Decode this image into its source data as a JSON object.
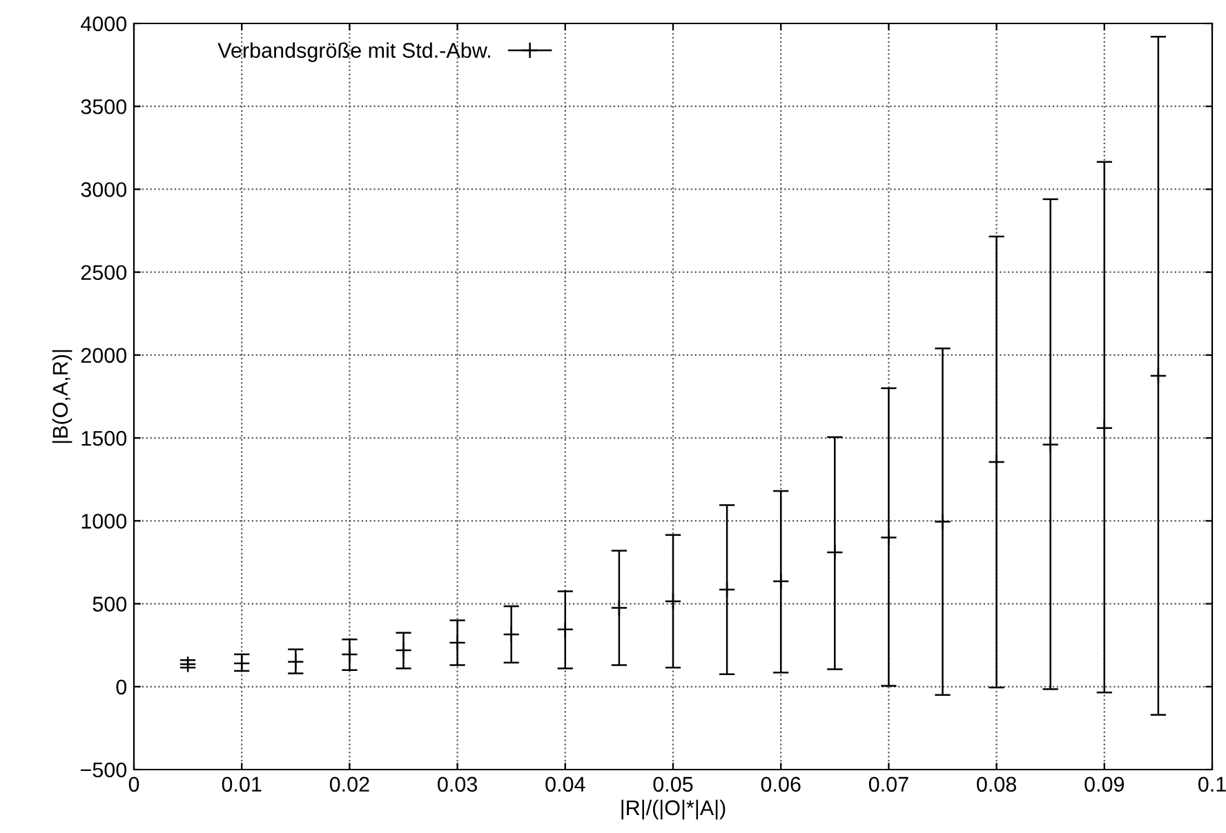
{
  "chart_data": {
    "type": "scatter",
    "xlabel": "|R|/(|O|*|A|)",
    "ylabel": "|B(O,A,R)|",
    "x": [
      0.005,
      0.01,
      0.015,
      0.02,
      0.025,
      0.03,
      0.035,
      0.04,
      0.045,
      0.05,
      0.055,
      0.06,
      0.065,
      0.07,
      0.075,
      0.08,
      0.085,
      0.09,
      0.095
    ],
    "series": [
      {
        "name": "Verbandsgröße mit Std.-Abw.",
        "color": "#000000",
        "values": [
          135,
          140,
          150,
          195,
          220,
          265,
          315,
          345,
          475,
          515,
          585,
          635,
          810,
          900,
          995,
          1355,
          1460,
          1560,
          1875
        ],
        "errors": [
          [
            115,
            160
          ],
          [
            95,
            195
          ],
          [
            80,
            225
          ],
          [
            100,
            285
          ],
          [
            110,
            325
          ],
          [
            130,
            400
          ],
          [
            145,
            485
          ],
          [
            110,
            575
          ],
          [
            130,
            820
          ],
          [
            115,
            915
          ],
          [
            75,
            1095
          ],
          [
            85,
            1180
          ],
          [
            105,
            1505
          ],
          [
            5,
            1800
          ],
          [
            -50,
            2040
          ],
          [
            -5,
            2715
          ],
          [
            -15,
            2940
          ],
          [
            -35,
            3165
          ],
          [
            -170,
            3920
          ]
        ]
      }
    ],
    "xlim": [
      0,
      0.1
    ],
    "xticks": [
      0,
      0.01,
      0.02,
      0.03,
      0.04,
      0.05,
      0.06,
      0.07,
      0.08,
      0.09,
      0.1
    ],
    "ylim": [
      -500,
      4000
    ],
    "yticks": [
      {
        "value": -500,
        "label": "−500"
      },
      0,
      500,
      1000,
      1500,
      2000,
      2500,
      3000,
      3500,
      4000
    ],
    "grid": true,
    "legend": "top left",
    "marker": "cross"
  }
}
